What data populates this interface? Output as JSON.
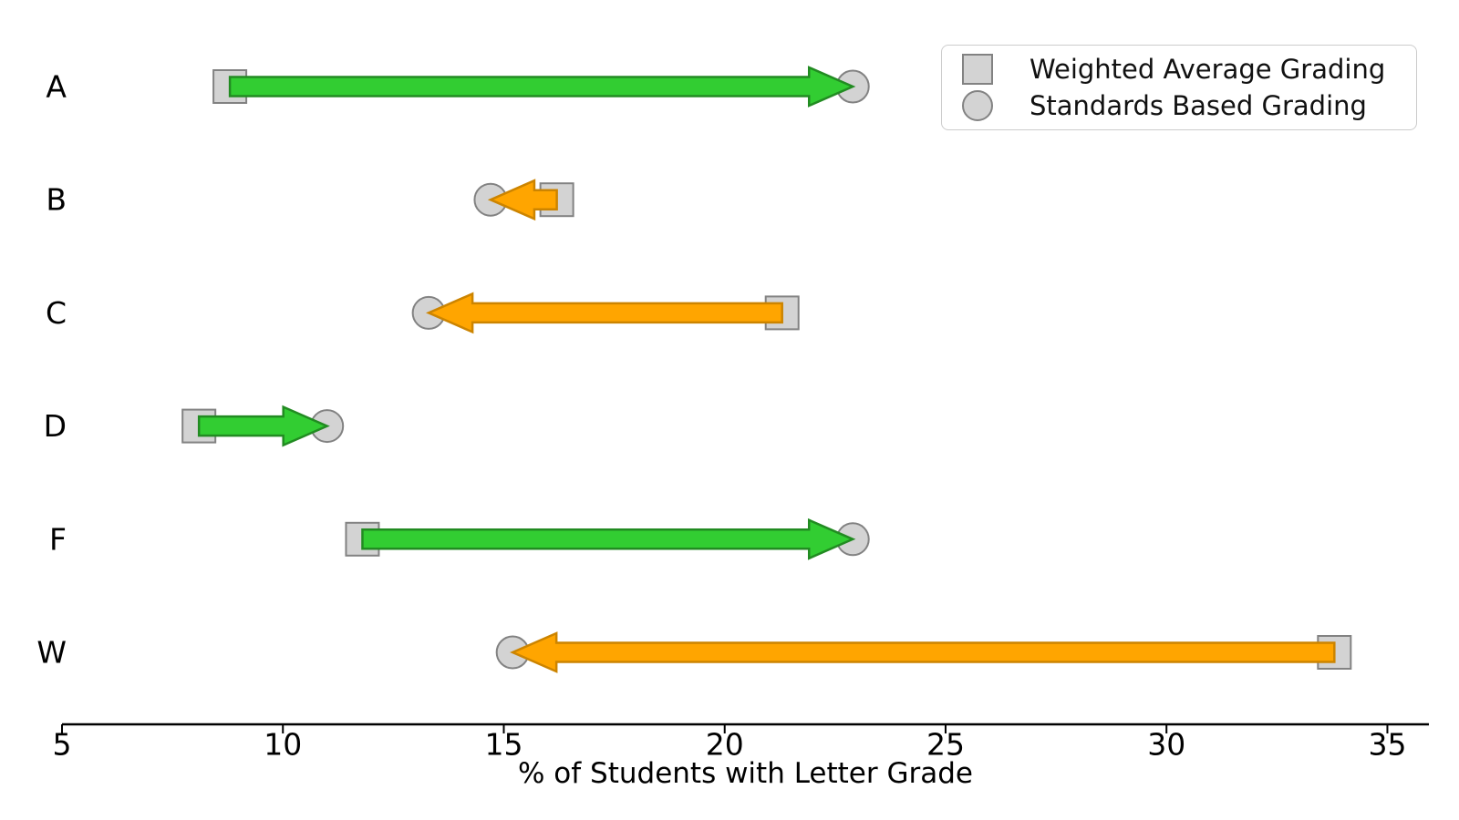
{
  "chart_data": {
    "type": "dumbbell-arrow",
    "title": "",
    "xlabel": "% of Students with Letter Grade",
    "ylabel": "",
    "categories": [
      "A",
      "B",
      "C",
      "D",
      "F",
      "W"
    ],
    "series": [
      {
        "name": "Weighted Average Grading",
        "marker": "square",
        "values": [
          8.8,
          16.2,
          21.3,
          8.1,
          11.8,
          33.8
        ]
      },
      {
        "name": "Standards Based Grading",
        "marker": "circle",
        "values": [
          22.9,
          14.7,
          13.3,
          11.0,
          22.9,
          15.2
        ]
      }
    ],
    "xticks": [
      5,
      10,
      15,
      20,
      25,
      30,
      35
    ],
    "xlim": [
      5,
      35.94
    ],
    "legend_position": "upper right",
    "grid": "off",
    "colors": {
      "increase_fill": "#32cd32",
      "increase_edge": "#228b22",
      "decrease_fill": "#ffa500",
      "decrease_edge": "#cc8400",
      "marker_fill": "#d3d3d3",
      "marker_edge": "#828282",
      "axis": "#000000"
    }
  }
}
